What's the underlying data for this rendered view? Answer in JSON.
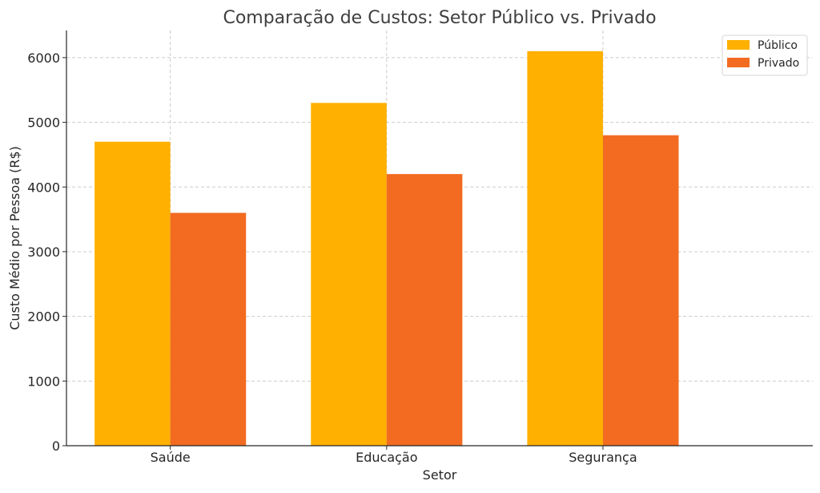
{
  "chart_data": {
    "type": "bar",
    "title": "Comparação de Custos: Setor Público vs. Privado",
    "xlabel": "Setor",
    "ylabel": "Custo Médio por Pessoa (R$)",
    "categories": [
      "Saúde",
      "Educação",
      "Segurança"
    ],
    "series": [
      {
        "name": "Público",
        "values": [
          4700,
          5300,
          6100
        ],
        "color": "#FFB000"
      },
      {
        "name": "Privado",
        "values": [
          3600,
          4200,
          4800
        ],
        "color": "#F26B21"
      }
    ],
    "ylim": [
      0,
      6420
    ],
    "yticks": [
      0,
      1000,
      2000,
      3000,
      4000,
      5000,
      6000
    ],
    "grid": true,
    "legend_position": "top-right"
  }
}
